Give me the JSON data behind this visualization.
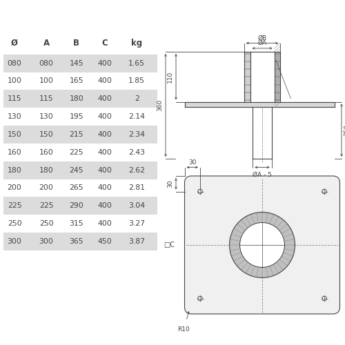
{
  "table_headers": [
    "Ø",
    "A",
    "B",
    "C",
    "kg"
  ],
  "table_data": [
    [
      "080",
      "080",
      "145",
      "400",
      "1.65"
    ],
    [
      "100",
      "100",
      "165",
      "400",
      "1.85"
    ],
    [
      "115",
      "115",
      "180",
      "400",
      "2"
    ],
    [
      "130",
      "130",
      "195",
      "400",
      "2.14"
    ],
    [
      "150",
      "150",
      "215",
      "400",
      "2.34"
    ],
    [
      "160",
      "160",
      "225",
      "400",
      "2.43"
    ],
    [
      "180",
      "180",
      "245",
      "400",
      "2.62"
    ],
    [
      "200",
      "200",
      "265",
      "400",
      "2.81"
    ],
    [
      "225",
      "225",
      "290",
      "400",
      "3.04"
    ],
    [
      "250",
      "250",
      "315",
      "400",
      "3.27"
    ],
    [
      "300",
      "300",
      "365",
      "450",
      "3.87"
    ]
  ],
  "row_shaded": [
    0,
    2,
    4,
    6,
    8,
    10
  ],
  "shade_color": "#dcdcdc",
  "bg_color": "#ffffff",
  "line_color": "#444444",
  "text_color": "#444444",
  "dim_color": "#444444"
}
